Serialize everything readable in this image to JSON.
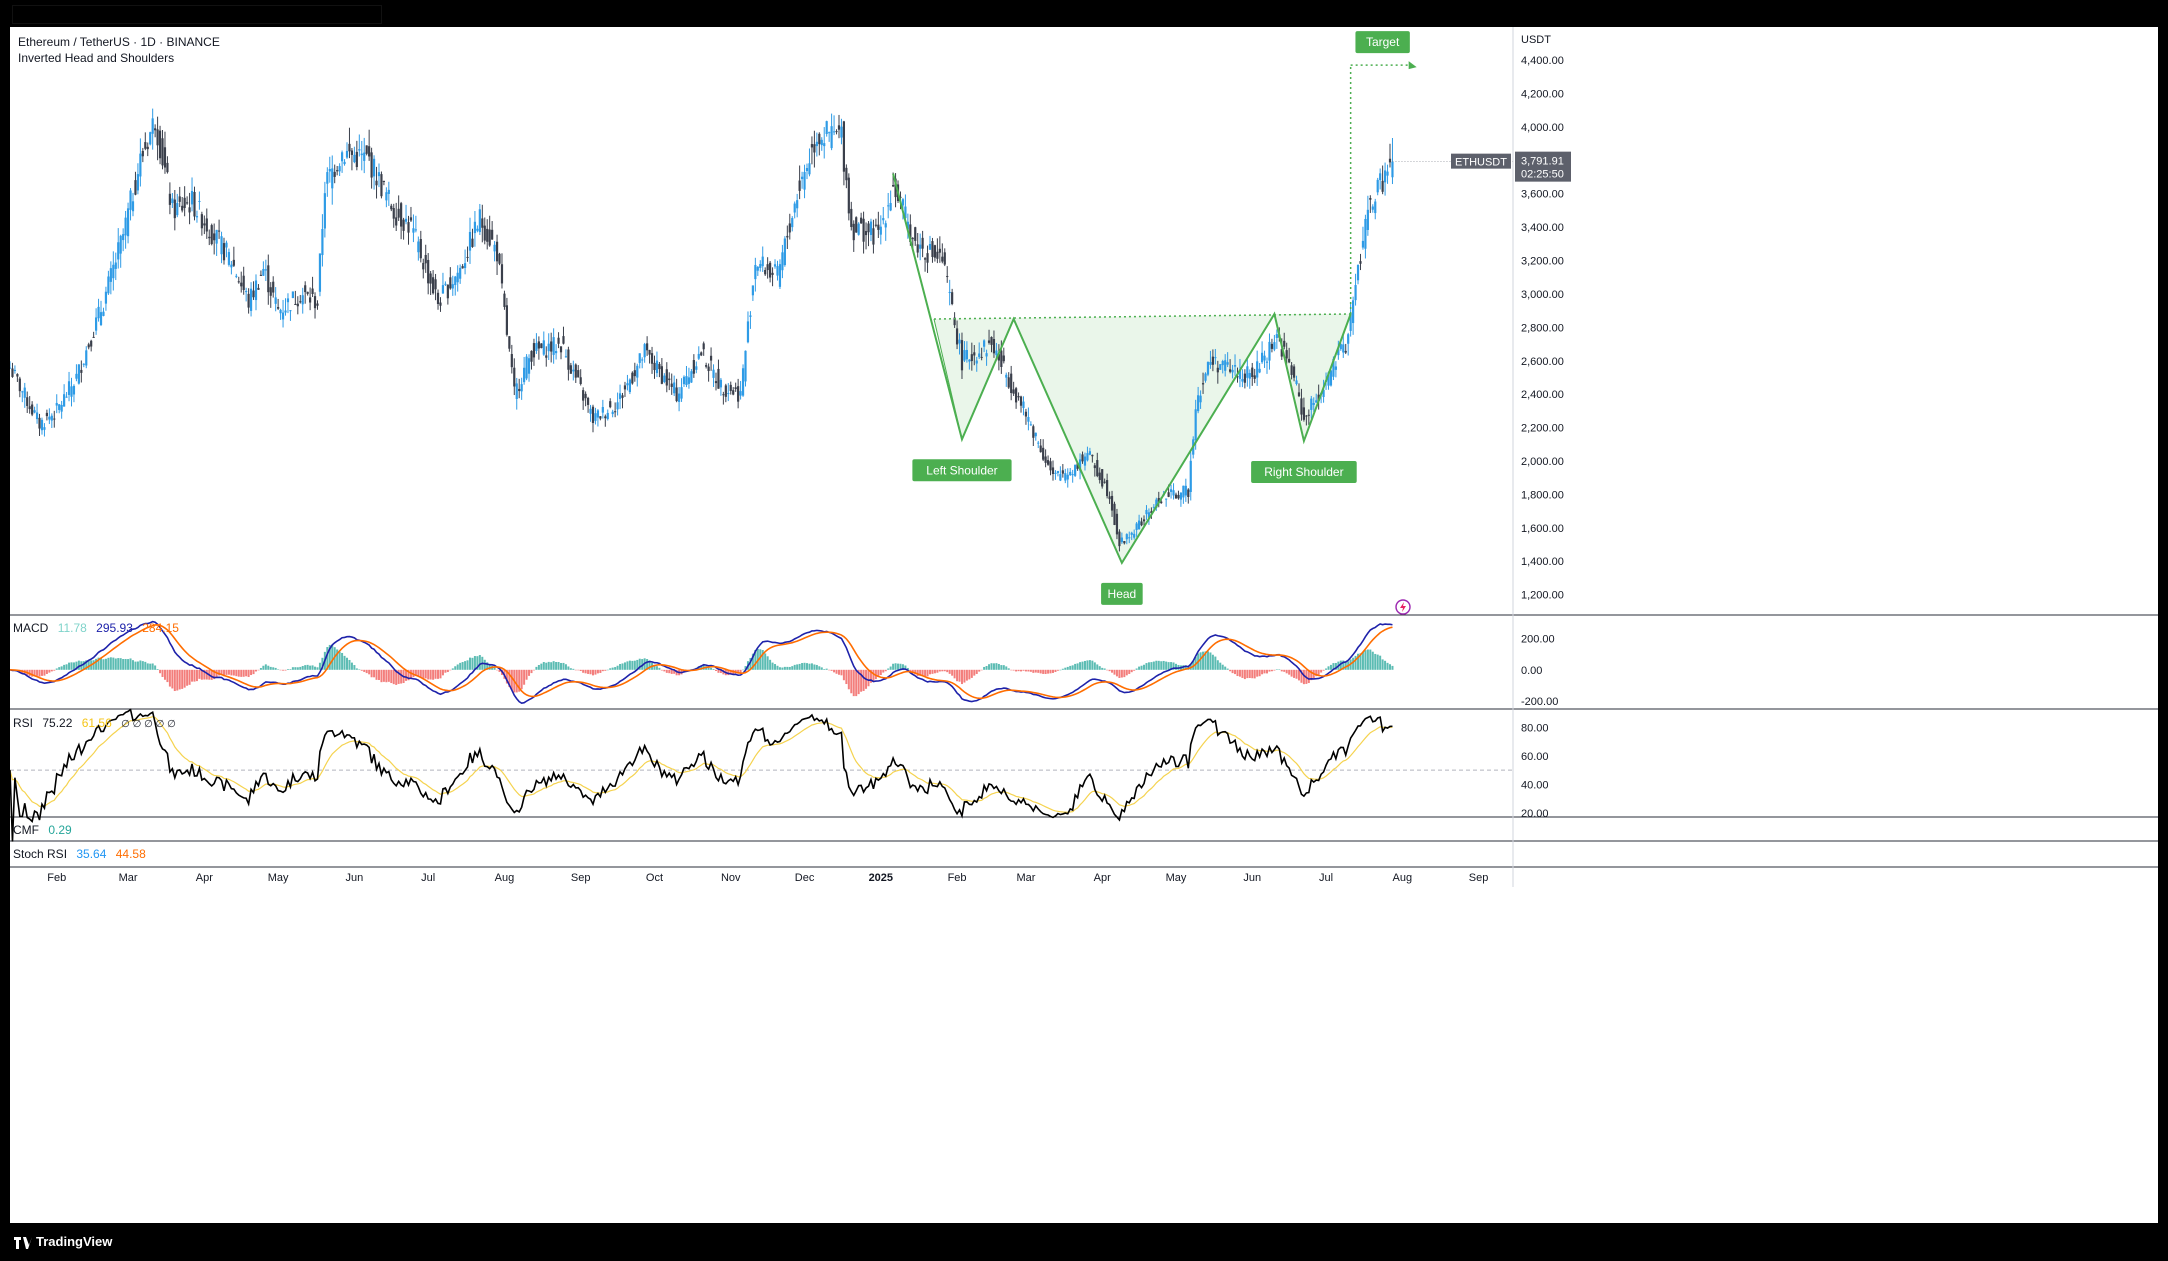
{
  "header": {
    "symbol_line": "Ethereum / TetherUS · 1D · BINANCE",
    "pattern_line": "Inverted Head and Shoulders"
  },
  "price_axis": {
    "unit": "USDT",
    "ticks": [
      "4,400.00",
      "4,200.00",
      "4,000.00",
      "3,800.00",
      "3,600.00",
      "3,400.00",
      "3,200.00",
      "3,000.00",
      "2,800.00",
      "2,600.00",
      "2,400.00",
      "2,200.00",
      "2,000.00",
      "1,800.00",
      "1,600.00",
      "1,400.00",
      "1,200.00"
    ],
    "last_price_symbol": "ETHUSDT",
    "last_price": "3,791.91",
    "countdown": "02:25:50"
  },
  "time_axis": [
    "Feb",
    "Mar",
    "Apr",
    "May",
    "Jun",
    "Jul",
    "Aug",
    "Sep",
    "Oct",
    "Nov",
    "Dec",
    "2025",
    "Feb",
    "Mar",
    "Apr",
    "May",
    "Jun",
    "Jul",
    "Aug",
    "Sep"
  ],
  "pattern_labels": {
    "target": "Target",
    "left_shoulder": "Left Shoulder",
    "head": "Head",
    "right_shoulder": "Right Shoulder"
  },
  "indicators": {
    "macd": {
      "name": "MACD",
      "hist": "11.78",
      "macd": "295.93",
      "signal": "284.15",
      "ticks": [
        "200.00",
        "0.00",
        "-200.00"
      ]
    },
    "rsi": {
      "name": "RSI",
      "value": "75.22",
      "ma": "61.56",
      "extra": "∅ ∅ ∅ ∅ ∅",
      "ticks": [
        "80.00",
        "60.00",
        "40.00",
        "20.00"
      ]
    },
    "cmf": {
      "name": "CMF",
      "value": "0.29"
    },
    "stoch_rsi": {
      "name": "Stoch RSI",
      "k": "35.64",
      "d": "44.58"
    }
  },
  "colors": {
    "up": "#2e9be6",
    "down": "#3a3f4b",
    "pattern": "#4caf50",
    "pattern_fill": "#e6f4e6",
    "macd_line": "#1e22aa",
    "signal_line": "#ff6d00",
    "rsi_line": "#000000",
    "rsi_ma": "#f5d34f",
    "hist_up": "#26a69a",
    "hist_down": "#ef5350"
  },
  "footer": {
    "brand": "TradingView"
  },
  "chart_data": {
    "type": "candlestick",
    "title": "Ethereum / TetherUS · 1D · BINANCE",
    "ylabel": "USDT",
    "ylim": [
      1150,
      4550
    ],
    "x_range": [
      "2024-01-13",
      "2025-09-15"
    ],
    "price_path": [
      [
        "2024-01-13",
        2560
      ],
      [
        "2024-01-25",
        2220
      ],
      [
        "2024-02-01",
        2300
      ],
      [
        "2024-02-09",
        2500
      ],
      [
        "2024-02-20",
        2950
      ],
      [
        "2024-02-28",
        3350
      ],
      [
        "2024-03-06",
        3800
      ],
      [
        "2024-03-12",
        4050
      ],
      [
        "2024-03-19",
        3500
      ],
      [
        "2024-03-27",
        3550
      ],
      [
        "2024-04-05",
        3350
      ],
      [
        "2024-04-12",
        3200
      ],
      [
        "2024-04-19",
        2950
      ],
      [
        "2024-04-25",
        3150
      ],
      [
        "2024-05-01",
        2900
      ],
      [
        "2024-05-10",
        3000
      ],
      [
        "2024-05-17",
        2950
      ],
      [
        "2024-05-20",
        3650
      ],
      [
        "2024-05-27",
        3850
      ],
      [
        "2024-06-07",
        3800
      ],
      [
        "2024-06-17",
        3500
      ],
      [
        "2024-06-24",
        3400
      ],
      [
        "2024-07-05",
        2950
      ],
      [
        "2024-07-14",
        3150
      ],
      [
        "2024-07-22",
        3450
      ],
      [
        "2024-07-29",
        3250
      ],
      [
        "2024-08-05",
        2400
      ],
      [
        "2024-08-12",
        2650
      ],
      [
        "2024-08-24",
        2700
      ],
      [
        "2024-09-06",
        2250
      ],
      [
        "2024-09-16",
        2350
      ],
      [
        "2024-09-27",
        2650
      ],
      [
        "2024-10-10",
        2400
      ],
      [
        "2024-10-20",
        2650
      ],
      [
        "2024-10-28",
        2450
      ],
      [
        "2024-11-05",
        2400
      ],
      [
        "2024-11-11",
        3200
      ],
      [
        "2024-11-20",
        3100
      ],
      [
        "2024-11-28",
        3600
      ],
      [
        "2024-12-06",
        3950
      ],
      [
        "2024-12-16",
        3950
      ],
      [
        "2024-12-20",
        3400
      ],
      [
        "2024-12-31",
        3350
      ],
      [
        "2025-01-06",
        3650
      ],
      [
        "2025-01-15",
        3300
      ],
      [
        "2025-01-26",
        3200
      ],
      [
        "2025-02-03",
        2600
      ],
      [
        "2025-02-15",
        2700
      ],
      [
        "2025-02-25",
        2400
      ],
      [
        "2025-03-05",
        2150
      ],
      [
        "2025-03-12",
        1900
      ],
      [
        "2025-03-20",
        1950
      ],
      [
        "2025-03-26",
        2050
      ],
      [
        "2025-04-04",
        1800
      ],
      [
        "2025-04-08",
        1500
      ],
      [
        "2025-04-15",
        1600
      ],
      [
        "2025-04-25",
        1780
      ],
      [
        "2025-05-06",
        1820
      ],
      [
        "2025-05-09",
        2350
      ],
      [
        "2025-05-15",
        2600
      ],
      [
        "2025-06-01",
        2500
      ],
      [
        "2025-06-11",
        2750
      ],
      [
        "2025-06-18",
        2500
      ],
      [
        "2025-06-22",
        2250
      ],
      [
        "2025-06-30",
        2450
      ],
      [
        "2025-07-09",
        2700
      ],
      [
        "2025-07-12",
        2950
      ],
      [
        "2025-07-18",
        3500
      ],
      [
        "2025-07-23",
        3650
      ],
      [
        "2025-07-28",
        3792
      ]
    ],
    "pattern": {
      "name": "Inverted Head and Shoulders",
      "points": [
        {
          "date": "2025-01-06",
          "price": 3720
        },
        {
          "date": "2025-02-03",
          "price": 2130,
          "label": "Left Shoulder"
        },
        {
          "date": "2025-02-24",
          "price": 2850
        },
        {
          "date": "2025-04-09",
          "price": 1390,
          "label": "Head"
        },
        {
          "date": "2025-06-10",
          "price": 2880
        },
        {
          "date": "2025-06-22",
          "price": 2120,
          "label": "Right Shoulder"
        },
        {
          "date": "2025-07-11",
          "price": 2880
        }
      ],
      "neckline": [
        2850,
        2880
      ],
      "target": 4370
    },
    "macd": {
      "range": [
        -200,
        300
      ]
    },
    "rsi": {
      "range": [
        20,
        90
      ],
      "midline": 50
    }
  }
}
